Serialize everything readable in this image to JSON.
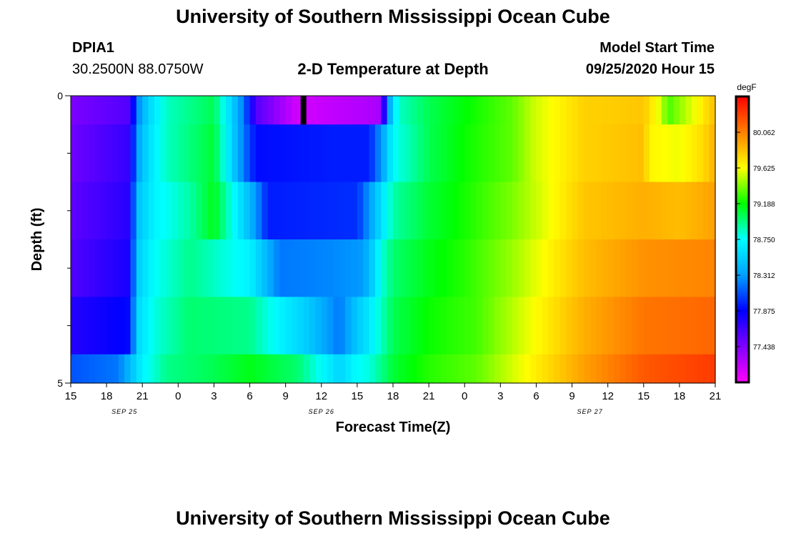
{
  "header": {
    "title": "University of Southern Mississippi Ocean Cube",
    "station_id": "DPIA1",
    "station_coords": "30.2500N 88.0750W",
    "plot_title": "2-D Temperature at Depth",
    "model_label": "Model Start Time",
    "model_time": "09/25/2020 Hour 15"
  },
  "footer": {
    "title": "University of Southern Mississippi Ocean Cube"
  },
  "chart_data": {
    "type": "heatmap",
    "title": "2-D Temperature at Depth",
    "xlabel": "Forecast Time(Z)",
    "ylabel": "Depth (ft)",
    "x_ticks": [
      "15",
      "18",
      "21",
      "0",
      "3",
      "6",
      "9",
      "12",
      "15",
      "18",
      "21",
      "0",
      "3",
      "6",
      "9",
      "12",
      "15",
      "18",
      "21"
    ],
    "x_range_hours": [
      0,
      54
    ],
    "date_labels": [
      {
        "text": "SEP 25",
        "at_hour": 4.5
      },
      {
        "text": "SEP 26",
        "at_hour": 21
      },
      {
        "text": "SEP 27",
        "at_hour": 43.5
      }
    ],
    "y_tick_labels": [
      "0",
      "5"
    ],
    "y_range": [
      0,
      5
    ],
    "y_inverted": true,
    "colorbar": {
      "unit": "degF",
      "ticks": [
        "77.438",
        "77.875",
        "78.312",
        "78.750",
        "79.188",
        "79.625",
        "80.062"
      ],
      "min": 77.0,
      "max": 80.5,
      "colors": [
        "#ff00ff",
        "#8000ff",
        "#0000ff",
        "#00a0ff",
        "#00ffff",
        "#00ff00",
        "#ffff00",
        "#ff8000",
        "#ff0000"
      ]
    },
    "depth_rows": [
      0.25,
      1.25,
      2.25,
      3.25,
      4.25,
      5.25
    ],
    "profiles": [
      [
        [
          0,
          77.45
        ],
        [
          5,
          77.6
        ],
        [
          5.5,
          78.2
        ],
        [
          6.5,
          78.55
        ],
        [
          8,
          78.85
        ],
        [
          12,
          79.05
        ],
        [
          14.5,
          78.2
        ],
        [
          15.5,
          77.6
        ],
        [
          19,
          77.15
        ],
        [
          26,
          77.3
        ],
        [
          26.5,
          78.2
        ],
        [
          27,
          78.6
        ],
        [
          27.5,
          78.85
        ],
        [
          30,
          79.05
        ],
        [
          33,
          79.18
        ],
        [
          37,
          79.35
        ],
        [
          39,
          79.55
        ],
        [
          43,
          79.78
        ],
        [
          48,
          79.82
        ],
        [
          49.5,
          79.55
        ],
        [
          50,
          79.3
        ],
        [
          51.5,
          79.5
        ],
        [
          53,
          79.7
        ],
        [
          54,
          79.85
        ]
      ],
      [
        [
          0,
          77.5
        ],
        [
          5,
          77.7
        ],
        [
          5.5,
          78.3
        ],
        [
          6.5,
          78.6
        ],
        [
          8,
          78.85
        ],
        [
          12,
          79.1
        ],
        [
          14.5,
          78.2
        ],
        [
          15.5,
          77.9
        ],
        [
          22,
          77.95
        ],
        [
          25,
          77.95
        ],
        [
          26,
          78.3
        ],
        [
          26.5,
          78.5
        ],
        [
          27,
          78.75
        ],
        [
          30,
          79.05
        ],
        [
          33,
          79.2
        ],
        [
          37,
          79.35
        ],
        [
          39,
          79.55
        ],
        [
          43,
          79.78
        ],
        [
          48,
          79.85
        ],
        [
          48.5,
          79.65
        ],
        [
          51,
          79.6
        ],
        [
          53,
          79.75
        ],
        [
          54,
          79.9
        ]
      ],
      [
        [
          0,
          77.55
        ],
        [
          5,
          77.75
        ],
        [
          5.5,
          78.45
        ],
        [
          7,
          78.7
        ],
        [
          10,
          78.9
        ],
        [
          12,
          79.15
        ],
        [
          15.5,
          78.3
        ],
        [
          16.5,
          77.95
        ],
        [
          24,
          78.0
        ],
        [
          25,
          78.3
        ],
        [
          26,
          78.6
        ],
        [
          27,
          78.9
        ],
        [
          30,
          79.1
        ],
        [
          33,
          79.22
        ],
        [
          37,
          79.4
        ],
        [
          40,
          79.6
        ],
        [
          43,
          79.82
        ],
        [
          48,
          79.9
        ],
        [
          51,
          79.85
        ],
        [
          54,
          79.95
        ]
      ],
      [
        [
          0,
          77.6
        ],
        [
          5,
          77.8
        ],
        [
          5.5,
          78.5
        ],
        [
          7,
          78.75
        ],
        [
          10,
          78.95
        ],
        [
          15,
          78.7
        ],
        [
          16.5,
          78.4
        ],
        [
          17.5,
          78.2
        ],
        [
          22,
          78.25
        ],
        [
          24.5,
          78.3
        ],
        [
          25.5,
          78.6
        ],
        [
          26,
          78.8
        ],
        [
          27,
          79.0
        ],
        [
          30,
          79.15
        ],
        [
          33,
          79.25
        ],
        [
          37,
          79.45
        ],
        [
          40,
          79.65
        ],
        [
          43,
          79.85
        ],
        [
          48,
          80.0
        ],
        [
          54,
          80.05
        ]
      ],
      [
        [
          0,
          77.75
        ],
        [
          5,
          77.9
        ],
        [
          5.5,
          78.55
        ],
        [
          7,
          78.8
        ],
        [
          10,
          79.0
        ],
        [
          15,
          78.95
        ],
        [
          17,
          78.75
        ],
        [
          20,
          78.5
        ],
        [
          22.5,
          78.2
        ],
        [
          24,
          78.5
        ],
        [
          25,
          78.65
        ],
        [
          26,
          78.85
        ],
        [
          27,
          79.05
        ],
        [
          30,
          79.2
        ],
        [
          34,
          79.3
        ],
        [
          37,
          79.5
        ],
        [
          40,
          79.7
        ],
        [
          43,
          79.9
        ],
        [
          48,
          80.1
        ],
        [
          54,
          80.15
        ]
      ],
      [
        [
          0,
          78.1
        ],
        [
          4,
          78.2
        ],
        [
          6,
          78.7
        ],
        [
          8,
          78.95
        ],
        [
          12,
          79.05
        ],
        [
          15,
          79.15
        ],
        [
          19,
          79.0
        ],
        [
          22.5,
          78.55
        ],
        [
          24,
          78.75
        ],
        [
          25,
          78.8
        ],
        [
          27,
          79.1
        ],
        [
          30,
          79.25
        ],
        [
          34,
          79.35
        ],
        [
          37,
          79.55
        ],
        [
          40,
          79.75
        ],
        [
          43,
          79.95
        ],
        [
          48,
          80.2
        ],
        [
          54,
          80.3
        ]
      ]
    ],
    "marker": {
      "at_hour": 19.5,
      "depth_range": [
        0,
        0.5
      ],
      "color": "#000000"
    }
  }
}
